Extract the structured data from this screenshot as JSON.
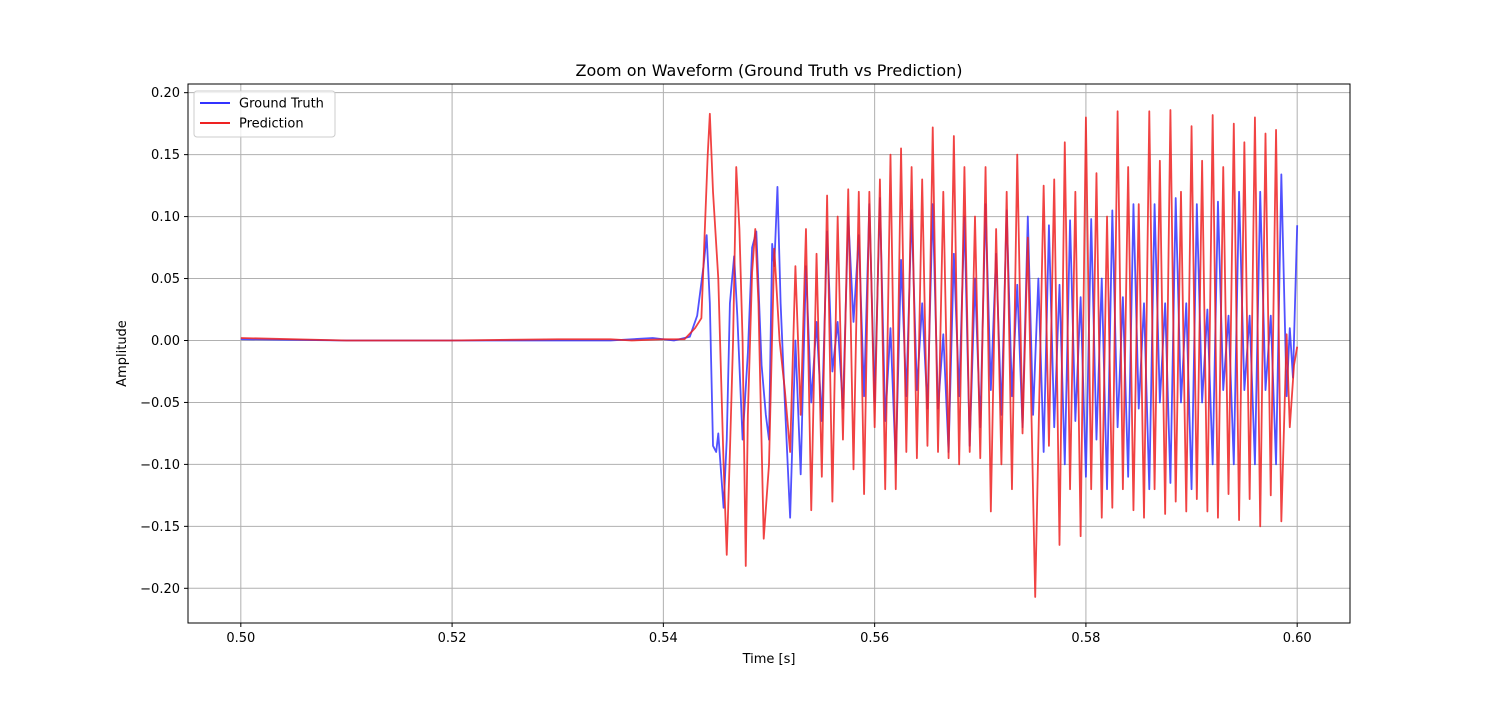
{
  "chart_data": {
    "type": "line",
    "title": "Zoom on Waveform (Ground Truth vs Prediction)",
    "xlabel": "Time [s]",
    "ylabel": "Amplitude",
    "xlim": [
      0.495,
      0.605
    ],
    "ylim": [
      -0.228,
      0.207
    ],
    "xticks": [
      0.5,
      0.52,
      0.54,
      0.56,
      0.58,
      0.6
    ],
    "xtick_labels": [
      "0.50",
      "0.52",
      "0.54",
      "0.56",
      "0.58",
      "0.60"
    ],
    "yticks": [
      -0.2,
      -0.15,
      -0.1,
      -0.05,
      0.0,
      0.05,
      0.1,
      0.15,
      0.2
    ],
    "ytick_labels": [
      "−0.20",
      "−0.15",
      "−0.10",
      "−0.05",
      "0.00",
      "0.05",
      "0.10",
      "0.15",
      "0.20"
    ],
    "grid": true,
    "legend_position": "upper-left",
    "series": [
      {
        "name": "Ground Truth",
        "color": "#3333ff",
        "points": [
          [
            0.5,
            0.001
          ],
          [
            0.51,
            0.0
          ],
          [
            0.52,
            0.0
          ],
          [
            0.53,
            0.0
          ],
          [
            0.535,
            0.0
          ],
          [
            0.539,
            0.002
          ],
          [
            0.541,
            0.0
          ],
          [
            0.5425,
            0.003
          ],
          [
            0.5432,
            0.02
          ],
          [
            0.5438,
            0.06
          ],
          [
            0.5441,
            0.085
          ],
          [
            0.5444,
            0.03
          ],
          [
            0.5447,
            -0.085
          ],
          [
            0.545,
            -0.09
          ],
          [
            0.5452,
            -0.075
          ],
          [
            0.5457,
            -0.135
          ],
          [
            0.546,
            -0.08
          ],
          [
            0.5463,
            0.03
          ],
          [
            0.5467,
            0.068
          ],
          [
            0.547,
            0.02
          ],
          [
            0.5475,
            -0.08
          ],
          [
            0.548,
            -0.01
          ],
          [
            0.5484,
            0.075
          ],
          [
            0.5488,
            0.088
          ],
          [
            0.5493,
            -0.02
          ],
          [
            0.5497,
            -0.06
          ],
          [
            0.55,
            -0.08
          ],
          [
            0.5503,
            0.078
          ],
          [
            0.5505,
            0.06
          ],
          [
            0.5508,
            0.124
          ],
          [
            0.5511,
            0.03
          ],
          [
            0.5515,
            -0.05
          ],
          [
            0.552,
            -0.143
          ],
          [
            0.5525,
            0.0
          ],
          [
            0.553,
            -0.108
          ],
          [
            0.5535,
            0.06
          ],
          [
            0.554,
            -0.05
          ],
          [
            0.5545,
            0.015
          ],
          [
            0.555,
            -0.065
          ],
          [
            0.5555,
            0.088
          ],
          [
            0.556,
            -0.025
          ],
          [
            0.5565,
            0.015
          ],
          [
            0.557,
            -0.055
          ],
          [
            0.5575,
            0.1
          ],
          [
            0.558,
            0.015
          ],
          [
            0.5585,
            0.085
          ],
          [
            0.559,
            -0.045
          ],
          [
            0.5595,
            0.11
          ],
          [
            0.56,
            -0.05
          ],
          [
            0.5605,
            0.115
          ],
          [
            0.561,
            -0.065
          ],
          [
            0.5615,
            0.01
          ],
          [
            0.562,
            -0.1
          ],
          [
            0.5625,
            0.065
          ],
          [
            0.563,
            -0.045
          ],
          [
            0.5635,
            0.105
          ],
          [
            0.564,
            -0.04
          ],
          [
            0.5645,
            0.03
          ],
          [
            0.565,
            -0.055
          ],
          [
            0.5655,
            0.11
          ],
          [
            0.566,
            -0.055
          ],
          [
            0.5665,
            0.005
          ],
          [
            0.567,
            -0.09
          ],
          [
            0.5675,
            0.07
          ],
          [
            0.568,
            -0.045
          ],
          [
            0.5685,
            0.1
          ],
          [
            0.569,
            -0.085
          ],
          [
            0.5695,
            0.05
          ],
          [
            0.57,
            -0.07
          ],
          [
            0.5705,
            0.11
          ],
          [
            0.571,
            -0.04
          ],
          [
            0.5715,
            0.07
          ],
          [
            0.572,
            -0.06
          ],
          [
            0.5725,
            0.105
          ],
          [
            0.573,
            -0.045
          ],
          [
            0.5735,
            0.045
          ],
          [
            0.574,
            -0.07
          ],
          [
            0.5745,
            0.1
          ],
          [
            0.575,
            -0.06
          ],
          [
            0.5755,
            0.05
          ],
          [
            0.576,
            -0.09
          ],
          [
            0.5765,
            0.093
          ],
          [
            0.577,
            -0.07
          ],
          [
            0.5775,
            0.045
          ],
          [
            0.578,
            -0.1
          ],
          [
            0.5785,
            0.097
          ],
          [
            0.579,
            -0.065
          ],
          [
            0.5795,
            0.035
          ],
          [
            0.58,
            -0.11
          ],
          [
            0.5805,
            0.098
          ],
          [
            0.581,
            -0.08
          ],
          [
            0.5815,
            0.05
          ],
          [
            0.582,
            -0.12
          ],
          [
            0.5825,
            0.105
          ],
          [
            0.583,
            -0.07
          ],
          [
            0.5835,
            0.035
          ],
          [
            0.584,
            -0.11
          ],
          [
            0.5845,
            0.11
          ],
          [
            0.585,
            -0.055
          ],
          [
            0.5855,
            0.03
          ],
          [
            0.586,
            -0.12
          ],
          [
            0.5865,
            0.11
          ],
          [
            0.587,
            -0.05
          ],
          [
            0.5875,
            0.03
          ],
          [
            0.588,
            -0.115
          ],
          [
            0.5885,
            0.115
          ],
          [
            0.589,
            -0.05
          ],
          [
            0.5895,
            0.03
          ],
          [
            0.59,
            -0.12
          ],
          [
            0.5905,
            0.11
          ],
          [
            0.591,
            -0.05
          ],
          [
            0.5915,
            0.025
          ],
          [
            0.592,
            -0.1
          ],
          [
            0.5925,
            0.112
          ],
          [
            0.593,
            -0.04
          ],
          [
            0.5935,
            0.02
          ],
          [
            0.594,
            -0.1
          ],
          [
            0.5945,
            0.12
          ],
          [
            0.595,
            -0.04
          ],
          [
            0.5955,
            0.02
          ],
          [
            0.596,
            -0.1
          ],
          [
            0.5965,
            0.12
          ],
          [
            0.597,
            -0.04
          ],
          [
            0.5975,
            0.02
          ],
          [
            0.598,
            -0.1
          ],
          [
            0.5985,
            0.134
          ],
          [
            0.599,
            -0.045
          ],
          [
            0.5993,
            0.01
          ],
          [
            0.5996,
            -0.03
          ],
          [
            0.6,
            0.093
          ]
        ]
      },
      {
        "name": "Prediction",
        "color": "#ee2222",
        "points": [
          [
            0.5,
            0.002
          ],
          [
            0.51,
            0.0
          ],
          [
            0.52,
            0.0
          ],
          [
            0.53,
            0.001
          ],
          [
            0.535,
            0.001
          ],
          [
            0.537,
            0.0
          ],
          [
            0.54,
            0.001
          ],
          [
            0.542,
            0.001
          ],
          [
            0.543,
            0.01
          ],
          [
            0.5436,
            0.018
          ],
          [
            0.5442,
            0.15
          ],
          [
            0.5444,
            0.183
          ],
          [
            0.5447,
            0.12
          ],
          [
            0.5452,
            0.05
          ],
          [
            0.5457,
            -0.1
          ],
          [
            0.546,
            -0.173
          ],
          [
            0.5463,
            -0.09
          ],
          [
            0.5466,
            0.0
          ],
          [
            0.5469,
            0.14
          ],
          [
            0.5472,
            0.09
          ],
          [
            0.5475,
            0.0
          ],
          [
            0.5478,
            -0.182
          ],
          [
            0.548,
            -0.06
          ],
          [
            0.5484,
            0.055
          ],
          [
            0.5487,
            0.09
          ],
          [
            0.549,
            0.03
          ],
          [
            0.5495,
            -0.16
          ],
          [
            0.55,
            -0.1
          ],
          [
            0.5505,
            0.074
          ],
          [
            0.551,
            0.0
          ],
          [
            0.5515,
            -0.04
          ],
          [
            0.552,
            -0.09
          ],
          [
            0.5525,
            0.06
          ],
          [
            0.553,
            -0.06
          ],
          [
            0.5535,
            0.09
          ],
          [
            0.554,
            -0.137
          ],
          [
            0.5545,
            0.07
          ],
          [
            0.555,
            -0.11
          ],
          [
            0.5555,
            0.117
          ],
          [
            0.556,
            -0.13
          ],
          [
            0.5565,
            0.1
          ],
          [
            0.557,
            -0.08
          ],
          [
            0.5575,
            0.122
          ],
          [
            0.558,
            -0.104
          ],
          [
            0.5585,
            0.12
          ],
          [
            0.559,
            -0.124
          ],
          [
            0.5595,
            0.12
          ],
          [
            0.56,
            -0.07
          ],
          [
            0.5605,
            0.13
          ],
          [
            0.561,
            -0.12
          ],
          [
            0.5615,
            0.15
          ],
          [
            0.562,
            -0.12
          ],
          [
            0.5625,
            0.155
          ],
          [
            0.563,
            -0.09
          ],
          [
            0.5635,
            0.14
          ],
          [
            0.564,
            -0.095
          ],
          [
            0.5645,
            0.13
          ],
          [
            0.565,
            -0.085
          ],
          [
            0.5655,
            0.172
          ],
          [
            0.566,
            -0.09
          ],
          [
            0.5665,
            0.12
          ],
          [
            0.567,
            -0.095
          ],
          [
            0.5675,
            0.165
          ],
          [
            0.568,
            -0.1
          ],
          [
            0.5685,
            0.14
          ],
          [
            0.569,
            -0.09
          ],
          [
            0.5695,
            0.1
          ],
          [
            0.57,
            -0.095
          ],
          [
            0.5705,
            0.14
          ],
          [
            0.571,
            -0.138
          ],
          [
            0.5715,
            0.09
          ],
          [
            0.572,
            -0.1
          ],
          [
            0.5725,
            0.12
          ],
          [
            0.573,
            -0.12
          ],
          [
            0.5735,
            0.15
          ],
          [
            0.574,
            -0.075
          ],
          [
            0.5745,
            0.083
          ],
          [
            0.5752,
            -0.207
          ],
          [
            0.576,
            0.125
          ],
          [
            0.5765,
            -0.085
          ],
          [
            0.577,
            0.13
          ],
          [
            0.5775,
            -0.165
          ],
          [
            0.578,
            0.16
          ],
          [
            0.5785,
            -0.12
          ],
          [
            0.579,
            0.12
          ],
          [
            0.5795,
            -0.158
          ],
          [
            0.58,
            0.18
          ],
          [
            0.5805,
            -0.12
          ],
          [
            0.581,
            0.135
          ],
          [
            0.5815,
            -0.143
          ],
          [
            0.582,
            0.1
          ],
          [
            0.5825,
            -0.135
          ],
          [
            0.583,
            0.185
          ],
          [
            0.5835,
            -0.12
          ],
          [
            0.584,
            0.14
          ],
          [
            0.5845,
            -0.137
          ],
          [
            0.585,
            0.11
          ],
          [
            0.5855,
            -0.143
          ],
          [
            0.586,
            0.185
          ],
          [
            0.5865,
            -0.12
          ],
          [
            0.587,
            0.145
          ],
          [
            0.5875,
            -0.14
          ],
          [
            0.588,
            0.186
          ],
          [
            0.5885,
            -0.13
          ],
          [
            0.589,
            0.12
          ],
          [
            0.5895,
            -0.138
          ],
          [
            0.59,
            0.173
          ],
          [
            0.5905,
            -0.128
          ],
          [
            0.591,
            0.145
          ],
          [
            0.5915,
            -0.138
          ],
          [
            0.592,
            0.182
          ],
          [
            0.5925,
            -0.143
          ],
          [
            0.593,
            0.14
          ],
          [
            0.5935,
            -0.124
          ],
          [
            0.594,
            0.175
          ],
          [
            0.5945,
            -0.145
          ],
          [
            0.595,
            0.16
          ],
          [
            0.5955,
            -0.128
          ],
          [
            0.596,
            0.18
          ],
          [
            0.5965,
            -0.15
          ],
          [
            0.597,
            0.167
          ],
          [
            0.5975,
            -0.125
          ],
          [
            0.598,
            0.17
          ],
          [
            0.5985,
            -0.146
          ],
          [
            0.599,
            0.005
          ],
          [
            0.5993,
            -0.07
          ],
          [
            0.5997,
            -0.02
          ],
          [
            0.6,
            -0.005
          ]
        ]
      }
    ]
  }
}
